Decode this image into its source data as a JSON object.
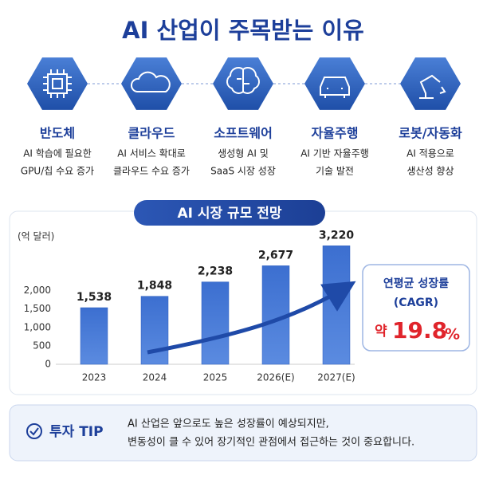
{
  "title": "AI 산업이 주목받는 이유",
  "industries": [
    {
      "label": "반도체",
      "description": [
        "AI 학습에 필요한",
        "GPU/칩 수요 증가"
      ]
    },
    {
      "label": "클라우드",
      "description": [
        "AI 서비스 확대로",
        "클라우드 수요 증가"
      ]
    },
    {
      "label": "소프트웨어",
      "description": [
        "생성형 AI 및",
        "SaaS 시장 성장"
      ]
    },
    {
      "label": "자율주행",
      "description": [
        "AI 기반 자율주행",
        "기술 발전"
      ]
    },
    {
      "label": "로봇/자동화",
      "description": [
        "AI 적용으로",
        "생산성 향상"
      ]
    }
  ],
  "chart_data": {
    "type": "bar",
    "title": "AI 시장 규모 전망",
    "y_label": "(억 달러)",
    "categories": [
      "2023",
      "2024",
      "2025",
      "2026(E)",
      "2027(E)"
    ],
    "values": [
      1538,
      1848,
      2238,
      2677,
      3220
    ],
    "value_labels": [
      "1,538",
      "1,848",
      "2,238",
      "2,677",
      "3,220"
    ],
    "color": "#2f5fbf",
    "ylim": [
      0,
      3400
    ],
    "yticks": [
      0,
      500,
      {
        "value": 1000,
        "label": "1,000"
      },
      {
        "value": 1500,
        "label": "1,500"
      },
      {
        "value": 2000,
        "label": "2,000"
      }
    ],
    "grid": false
  },
  "cagr": {
    "label": "연평균 성장률",
    "sublabel": "(CAGR)",
    "prefix": "약",
    "value": 19.8,
    "unit": "%"
  },
  "tip": {
    "label": "투자 TIP",
    "lines": [
      "AI 산업은 앞으로도 높은 성장률이 예상되지만,",
      "변동성이 클 수 있어 장기적인 관점에서 접근하는 것이 중요합니다."
    ]
  }
}
